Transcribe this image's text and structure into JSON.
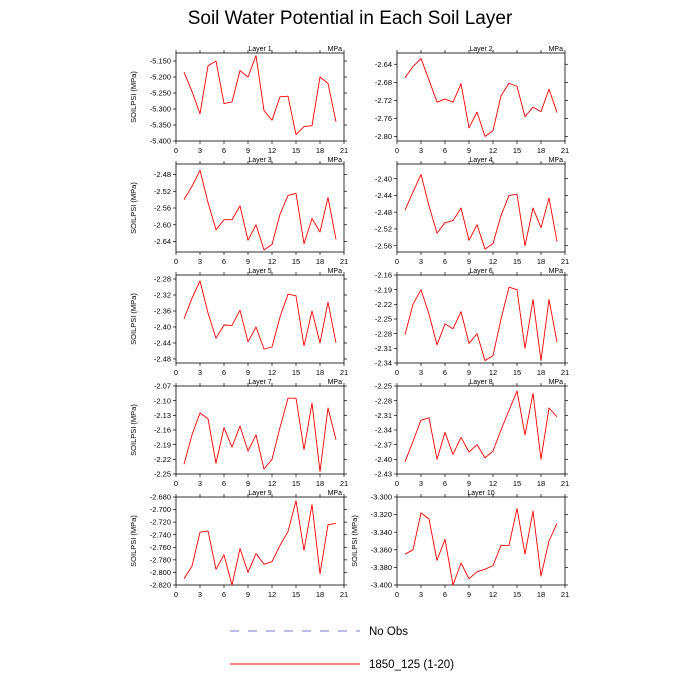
{
  "title": "Soil Water Potential in Each Soil Layer",
  "colors": {
    "series": "#ff0000",
    "no_obs": "#7777dd",
    "axis": "#000000"
  },
  "legend": [
    {
      "label": "No Obs",
      "style": "dashed",
      "color": "#7777dd"
    },
    {
      "label": "1850_125 (1-20)",
      "style": "solid",
      "color": "#ff0000"
    }
  ],
  "chart_data": [
    {
      "type": "line",
      "title": "Layer 1",
      "ylabel": "SOILPSI  (MPa)",
      "units": "MPa",
      "xlim": [
        0,
        21
      ],
      "xticks": [
        0,
        3,
        6,
        9,
        12,
        15,
        18,
        21
      ],
      "ylim": [
        -5.4,
        -5.125
      ],
      "yticks": [
        -5.4,
        -5.35,
        -5.3,
        -5.25,
        -5.2,
        -5.15
      ],
      "ytick_labels": [
        "-5.400",
        "-5.350",
        "-5.300",
        "-5.250",
        "-5.200",
        "-5.150"
      ],
      "x": [
        1,
        2,
        3,
        4,
        5,
        6,
        7,
        8,
        9,
        10,
        11,
        12,
        13,
        14,
        15,
        16,
        17,
        18,
        19,
        20
      ],
      "series": [
        {
          "values": [
            -5.185,
            -5.245,
            -5.315,
            -5.165,
            -5.15,
            -5.283,
            -5.278,
            -5.18,
            -5.2,
            -5.133,
            -5.305,
            -5.335,
            -5.262,
            -5.26,
            -5.38,
            -5.355,
            -5.352,
            -5.2,
            -5.22,
            -5.34
          ]
        }
      ]
    },
    {
      "type": "line",
      "title": "Layer 2",
      "ylabel": "",
      "units": "MPa",
      "xlim": [
        0,
        21
      ],
      "xticks": [
        0,
        3,
        6,
        9,
        12,
        15,
        18,
        21
      ],
      "ylim": [
        -2.81,
        -2.615
      ],
      "yticks": [
        -2.8,
        -2.76,
        -2.72,
        -2.68,
        -2.64
      ],
      "ytick_labels": [
        "-2.80",
        "-2.76",
        "-2.72",
        "-2.68",
        "-2.64"
      ],
      "x": [
        1,
        2,
        3,
        4,
        5,
        6,
        7,
        8,
        9,
        10,
        11,
        12,
        13,
        14,
        15,
        16,
        17,
        18,
        19,
        20
      ],
      "series": [
        {
          "values": [
            -2.67,
            -2.645,
            -2.627,
            -2.675,
            -2.724,
            -2.717,
            -2.724,
            -2.683,
            -2.781,
            -2.746,
            -2.8,
            -2.787,
            -2.71,
            -2.682,
            -2.689,
            -2.756,
            -2.735,
            -2.745,
            -2.695,
            -2.747
          ]
        }
      ]
    },
    {
      "type": "line",
      "title": "Layer 3",
      "ylabel": "SOILPSI  (MPa)",
      "units": "MPa",
      "xlim": [
        0,
        21
      ],
      "xticks": [
        0,
        3,
        6,
        9,
        12,
        15,
        18,
        21
      ],
      "ylim": [
        -2.665,
        -2.455
      ],
      "yticks": [
        -2.64,
        -2.6,
        -2.56,
        -2.52,
        -2.48
      ],
      "ytick_labels": [
        "-2.64",
        "-2.60",
        "-2.56",
        "-2.52",
        "-2.48"
      ],
      "x": [
        1,
        2,
        3,
        4,
        5,
        6,
        7,
        8,
        9,
        10,
        11,
        12,
        13,
        14,
        15,
        16,
        17,
        18,
        19,
        20
      ],
      "series": [
        {
          "values": [
            -2.54,
            -2.508,
            -2.47,
            -2.547,
            -2.612,
            -2.588,
            -2.588,
            -2.555,
            -2.637,
            -2.6,
            -2.66,
            -2.647,
            -2.575,
            -2.53,
            -2.525,
            -2.645,
            -2.585,
            -2.617,
            -2.535,
            -2.635
          ]
        }
      ]
    },
    {
      "type": "line",
      "title": "Layer 4",
      "ylabel": "",
      "units": "MPa",
      "xlim": [
        0,
        21
      ],
      "xticks": [
        0,
        3,
        6,
        9,
        12,
        15,
        18,
        21
      ],
      "ylim": [
        -2.575,
        -2.365
      ],
      "yticks": [
        -2.56,
        -2.52,
        -2.48,
        -2.44,
        -2.4
      ],
      "ytick_labels": [
        "-2.56",
        "-2.52",
        "-2.48",
        "-2.44",
        "-2.40"
      ],
      "x": [
        1,
        2,
        3,
        4,
        5,
        6,
        7,
        8,
        9,
        10,
        11,
        12,
        13,
        14,
        15,
        16,
        17,
        18,
        19,
        20
      ],
      "series": [
        {
          "values": [
            -2.475,
            -2.432,
            -2.39,
            -2.465,
            -2.53,
            -2.505,
            -2.5,
            -2.47,
            -2.547,
            -2.51,
            -2.568,
            -2.555,
            -2.488,
            -2.44,
            -2.437,
            -2.56,
            -2.47,
            -2.517,
            -2.446,
            -2.55
          ]
        }
      ]
    },
    {
      "type": "line",
      "title": "Layer 5",
      "ylabel": "SOILPSI  (MPa)",
      "units": "MPa",
      "xlim": [
        0,
        21
      ],
      "xticks": [
        0,
        3,
        6,
        9,
        12,
        15,
        18,
        21
      ],
      "ylim": [
        -2.49,
        -2.27
      ],
      "yticks": [
        -2.48,
        -2.44,
        -2.4,
        -2.36,
        -2.32,
        -2.28
      ],
      "ytick_labels": [
        "-2.48",
        "-2.44",
        "-2.40",
        "-2.36",
        "-2.32",
        "-2.28"
      ],
      "x": [
        1,
        2,
        3,
        4,
        5,
        6,
        7,
        8,
        9,
        10,
        11,
        12,
        13,
        14,
        15,
        16,
        17,
        18,
        19,
        20
      ],
      "series": [
        {
          "values": [
            -2.38,
            -2.328,
            -2.285,
            -2.365,
            -2.428,
            -2.395,
            -2.396,
            -2.358,
            -2.437,
            -2.4,
            -2.455,
            -2.45,
            -2.375,
            -2.318,
            -2.322,
            -2.447,
            -2.36,
            -2.44,
            -2.338,
            -2.44
          ]
        }
      ]
    },
    {
      "type": "line",
      "title": "Layer 6",
      "ylabel": "",
      "units": "MPa",
      "xlim": [
        0,
        21
      ],
      "xticks": [
        0,
        3,
        6,
        9,
        12,
        15,
        18,
        21
      ],
      "ylim": [
        -2.34,
        -2.16
      ],
      "yticks": [
        -2.34,
        -2.31,
        -2.28,
        -2.25,
        -2.22,
        -2.19,
        -2.16
      ],
      "ytick_labels": [
        "-2.34",
        "-2.31",
        "-2.28",
        "-2.25",
        "-2.22",
        "-2.19",
        "-2.16"
      ],
      "x": [
        1,
        2,
        3,
        4,
        5,
        6,
        7,
        8,
        9,
        10,
        11,
        12,
        13,
        14,
        15,
        16,
        17,
        18,
        19,
        20
      ],
      "series": [
        {
          "values": [
            -2.282,
            -2.22,
            -2.19,
            -2.24,
            -2.303,
            -2.26,
            -2.27,
            -2.235,
            -2.3,
            -2.28,
            -2.335,
            -2.325,
            -2.25,
            -2.185,
            -2.19,
            -2.31,
            -2.21,
            -2.335,
            -2.21,
            -2.297
          ]
        }
      ]
    },
    {
      "type": "line",
      "title": "Layer 7",
      "ylabel": "SOILPSI  (MPa)",
      "units": "MPa",
      "xlim": [
        0,
        21
      ],
      "xticks": [
        0,
        3,
        6,
        9,
        12,
        15,
        18,
        21
      ],
      "ylim": [
        -2.25,
        -2.07
      ],
      "yticks": [
        -2.25,
        -2.22,
        -2.19,
        -2.16,
        -2.13,
        -2.1,
        -2.07
      ],
      "ytick_labels": [
        "-2.25",
        "-2.22",
        "-2.19",
        "-2.16",
        "-2.13",
        "-2.10",
        "-2.07"
      ],
      "x": [
        1,
        2,
        3,
        4,
        5,
        6,
        7,
        8,
        9,
        10,
        11,
        12,
        13,
        14,
        15,
        16,
        17,
        18,
        19,
        20
      ],
      "series": [
        {
          "values": [
            -2.23,
            -2.17,
            -2.125,
            -2.137,
            -2.228,
            -2.155,
            -2.195,
            -2.152,
            -2.203,
            -2.17,
            -2.24,
            -2.22,
            -2.155,
            -2.095,
            -2.095,
            -2.2,
            -2.105,
            -2.245,
            -2.115,
            -2.18
          ]
        }
      ]
    },
    {
      "type": "line",
      "title": "Layer 8",
      "ylabel": "",
      "units": "MPa",
      "xlim": [
        0,
        21
      ],
      "xticks": [
        0,
        3,
        6,
        9,
        12,
        15,
        18,
        21
      ],
      "ylim": [
        -2.43,
        -2.25
      ],
      "yticks": [
        -2.43,
        -2.4,
        -2.37,
        -2.34,
        -2.31,
        -2.28,
        -2.25
      ],
      "ytick_labels": [
        "-2.43",
        "-2.40",
        "-2.37",
        "-2.34",
        "-2.31",
        "-2.28",
        "-2.25"
      ],
      "x": [
        1,
        2,
        3,
        4,
        5,
        6,
        7,
        8,
        9,
        10,
        11,
        12,
        13,
        14,
        15,
        16,
        17,
        18,
        19,
        20
      ],
      "series": [
        {
          "values": [
            -2.405,
            -2.363,
            -2.32,
            -2.315,
            -2.4,
            -2.345,
            -2.39,
            -2.355,
            -2.385,
            -2.37,
            -2.397,
            -2.383,
            -2.34,
            -2.3,
            -2.26,
            -2.35,
            -2.265,
            -2.4,
            -2.295,
            -2.313
          ]
        }
      ]
    },
    {
      "type": "line",
      "title": "Layer 9",
      "ylabel": "SOILPSI  (MPa)",
      "units": "MPa",
      "xlim": [
        0,
        21
      ],
      "xticks": [
        0,
        3,
        6,
        9,
        12,
        15,
        18,
        21
      ],
      "ylim": [
        -2.82,
        -2.68
      ],
      "yticks": [
        -2.82,
        -2.8,
        -2.78,
        -2.76,
        -2.74,
        -2.72,
        -2.7,
        -2.68
      ],
      "ytick_labels": [
        "-2.820",
        "-2.800",
        "-2.780",
        "-2.760",
        "-2.740",
        "-2.720",
        "-2.700",
        "-2.680"
      ],
      "x": [
        1,
        2,
        3,
        4,
        5,
        6,
        7,
        8,
        9,
        10,
        11,
        12,
        13,
        14,
        15,
        16,
        17,
        18,
        19,
        20
      ],
      "series": [
        {
          "values": [
            -2.81,
            -2.79,
            -2.736,
            -2.734,
            -2.795,
            -2.772,
            -2.82,
            -2.762,
            -2.8,
            -2.77,
            -2.787,
            -2.783,
            -2.757,
            -2.735,
            -2.686,
            -2.765,
            -2.692,
            -2.802,
            -2.724,
            -2.722
          ]
        }
      ]
    },
    {
      "type": "line",
      "title": "Layer 10",
      "ylabel": "SOILPSI  (MPa)",
      "units": "",
      "xlim": [
        0,
        21
      ],
      "xticks": [
        0,
        3,
        6,
        9,
        12,
        15,
        18,
        21
      ],
      "ylim": [
        -3.4,
        -3.3
      ],
      "yticks": [
        -3.4,
        -3.38,
        -3.36,
        -3.34,
        -3.32,
        -3.3
      ],
      "ytick_labels": [
        "-3.400",
        "-3.380",
        "-3.360",
        "-3.340",
        "-3.320",
        "-3.300"
      ],
      "x": [
        1,
        2,
        3,
        4,
        5,
        6,
        7,
        8,
        9,
        10,
        11,
        12,
        13,
        14,
        15,
        16,
        17,
        18,
        19,
        20
      ],
      "series": [
        {
          "values": [
            -3.365,
            -3.36,
            -3.318,
            -3.325,
            -3.372,
            -3.348,
            -3.4,
            -3.375,
            -3.393,
            -3.385,
            -3.382,
            -3.378,
            -3.355,
            -3.355,
            -3.313,
            -3.365,
            -3.316,
            -3.39,
            -3.35,
            -3.33
          ]
        }
      ]
    }
  ]
}
